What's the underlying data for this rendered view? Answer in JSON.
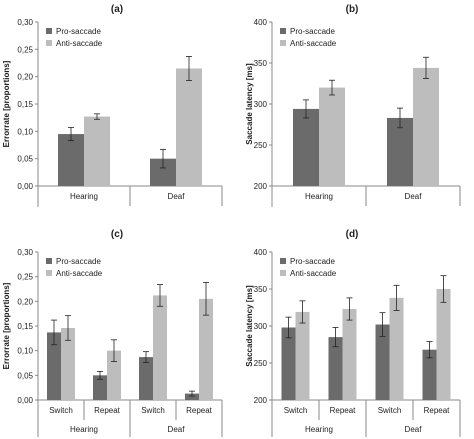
{
  "colors": {
    "pro": "#6b6b6b",
    "anti": "#bdbdbd",
    "axis": "#8a8a8a",
    "error": "#222222"
  },
  "chart_data": [
    {
      "panel": "(a)",
      "type": "bar",
      "ylabel": "Errorrate [proportions]",
      "ylim": [
        0,
        0.3
      ],
      "yticks": [
        "0,00",
        "0,05",
        "0,10",
        "0,15",
        "0,20",
        "0,25",
        "0,30"
      ],
      "categories": [
        "Hearing",
        "Deaf"
      ],
      "legend": "top-left",
      "series": [
        {
          "name": "Pro-saccade",
          "values": [
            0.095,
            0.05
          ],
          "errors": [
            0.012,
            0.017
          ]
        },
        {
          "name": "Anti-saccade",
          "values": [
            0.127,
            0.215
          ],
          "errors": [
            0.005,
            0.022
          ]
        }
      ]
    },
    {
      "panel": "(b)",
      "type": "bar",
      "ylabel": "Saccade latency [ms]",
      "ylim": [
        200,
        400
      ],
      "yticks": [
        "200",
        "250",
        "300",
        "350",
        "400"
      ],
      "categories": [
        "Hearing",
        "Deaf"
      ],
      "legend": "top-left",
      "series": [
        {
          "name": "Pro-saccade",
          "values": [
            294,
            283
          ],
          "errors": [
            11,
            12
          ]
        },
        {
          "name": "Anti-saccade",
          "values": [
            320,
            344
          ],
          "errors": [
            9,
            13
          ]
        }
      ]
    },
    {
      "panel": "(c)",
      "type": "bar",
      "ylabel": "Errorrate [proportions]",
      "ylim": [
        0,
        0.3
      ],
      "yticks": [
        "0,00",
        "0,05",
        "0,10",
        "0,15",
        "0,20",
        "0,25",
        "0,30"
      ],
      "categories": [
        "Switch",
        "Repeat",
        "Switch",
        "Repeat"
      ],
      "groups": [
        "Hearing",
        "Deaf"
      ],
      "legend": "top-left",
      "series": [
        {
          "name": "Pro-saccade",
          "values": [
            0.137,
            0.05,
            0.087,
            0.013
          ],
          "errors": [
            0.025,
            0.008,
            0.011,
            0.005
          ]
        },
        {
          "name": "Anti-saccade",
          "values": [
            0.146,
            0.1,
            0.212,
            0.205
          ],
          "errors": [
            0.025,
            0.022,
            0.022,
            0.033
          ]
        }
      ]
    },
    {
      "panel": "(d)",
      "type": "bar",
      "ylabel": "Saccade latency [ms]",
      "ylim": [
        200,
        400
      ],
      "yticks": [
        "200",
        "250",
        "300",
        "350",
        "400"
      ],
      "categories": [
        "Switch",
        "Repeat",
        "Switch",
        "Repeat"
      ],
      "groups": [
        "Hearing",
        "Deaf"
      ],
      "legend": "top-left",
      "series": [
        {
          "name": "Pro-saccade",
          "values": [
            298,
            285,
            302,
            268
          ],
          "errors": [
            14,
            13,
            16,
            11
          ]
        },
        {
          "name": "Anti-saccade",
          "values": [
            319,
            323,
            338,
            350
          ],
          "errors": [
            15,
            15,
            17,
            18
          ]
        }
      ]
    }
  ]
}
